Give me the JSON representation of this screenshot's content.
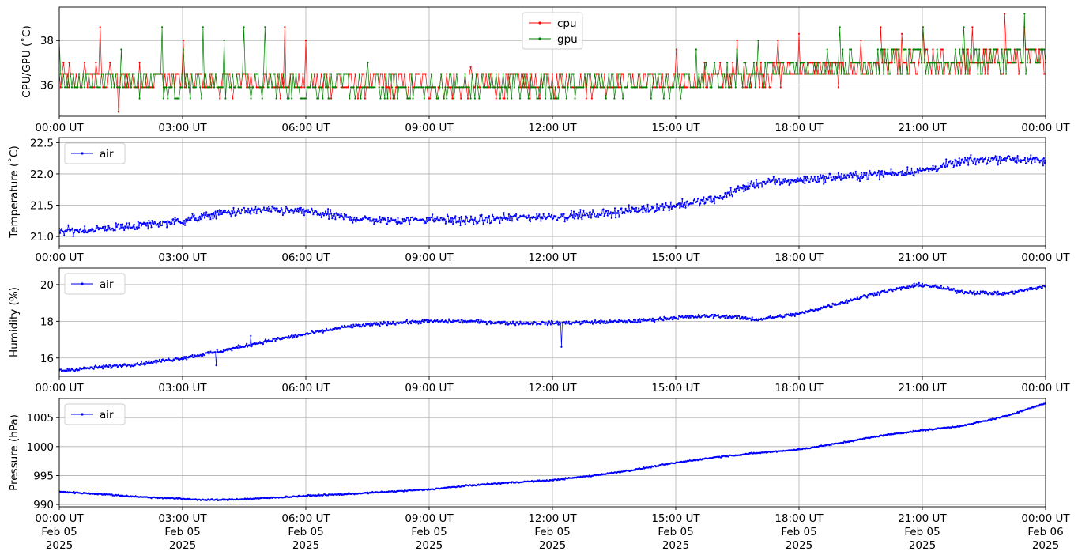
{
  "chart_data": [
    {
      "type": "line",
      "ylabel": "CPU/GPU (˚C)",
      "ylim": [
        34.6,
        39.5
      ],
      "yticks": [
        36,
        38
      ],
      "xlim": [
        0,
        24
      ],
      "xticks": [
        0,
        3,
        6,
        9,
        12,
        15,
        18,
        21,
        24
      ],
      "xtick_labels": [
        "00:00 UT",
        "03:00 UT",
        "06:00 UT",
        "09:00 UT",
        "12:00 UT",
        "15:00 UT",
        "18:00 UT",
        "21:00 UT",
        "00:00 UT"
      ],
      "grid": true,
      "legend_position": "upper center",
      "series": [
        {
          "name": "cpu",
          "color": "#ff0000",
          "generator": {
            "levels": [
              35.4,
              35.9,
              36.5,
              37.0,
              37.6
            ],
            "anchors": [
              [
                0,
                36.4
              ],
              [
                3,
                36.2
              ],
              [
                6,
                36.1
              ],
              [
                9,
                36.0
              ],
              [
                12,
                36.1
              ],
              [
                15,
                36.2
              ],
              [
                16.5,
                36.4
              ],
              [
                18,
                36.6
              ],
              [
                21,
                36.9
              ],
              [
                24,
                37.1
              ]
            ],
            "spread": 0.55,
            "spikes": [
              [
                1.0,
                38.6
              ],
              [
                1.45,
                34.8
              ],
              [
                3.0,
                38.0
              ],
              [
                5.5,
                38.6
              ],
              [
                6.0,
                38.0
              ],
              [
                10.0,
                36.8
              ],
              [
                15.0,
                37.6
              ],
              [
                16.5,
                38.0
              ],
              [
                17.5,
                38.0
              ],
              [
                18.0,
                38.3
              ],
              [
                19.5,
                38.0
              ],
              [
                20.0,
                38.6
              ],
              [
                20.5,
                38.3
              ],
              [
                21.0,
                38.6
              ],
              [
                22.2,
                38.6
              ],
              [
                23.0,
                39.2
              ],
              [
                23.5,
                38.6
              ]
            ],
            "n": 700
          }
        },
        {
          "name": "gpu",
          "color": "#008000",
          "generator": {
            "levels": [
              35.4,
              35.9,
              36.5,
              37.0,
              37.6
            ],
            "anchors": [
              [
                0,
                36.3
              ],
              [
                3,
                36.1
              ],
              [
                6,
                36.0
              ],
              [
                9,
                35.9
              ],
              [
                12,
                36.0
              ],
              [
                15,
                36.1
              ],
              [
                16.5,
                36.5
              ],
              [
                18,
                36.8
              ],
              [
                21,
                37.1
              ],
              [
                24,
                37.2
              ]
            ],
            "spread": 0.55,
            "spikes": [
              [
                0.0,
                38.0
              ],
              [
                1.5,
                37.6
              ],
              [
                2.5,
                38.6
              ],
              [
                3.0,
                37.6
              ],
              [
                3.5,
                38.6
              ],
              [
                4.0,
                38.0
              ],
              [
                4.5,
                38.6
              ],
              [
                5.0,
                38.6
              ],
              [
                7.5,
                37.0
              ],
              [
                15.5,
                37.6
              ],
              [
                16.5,
                37.6
              ],
              [
                17.0,
                38.0
              ],
              [
                19.0,
                38.6
              ],
              [
                21.0,
                38.6
              ],
              [
                22.0,
                38.6
              ],
              [
                23.5,
                39.2
              ]
            ],
            "n": 700
          }
        }
      ]
    },
    {
      "type": "line",
      "ylabel": "Temperature (˚C)",
      "ylim": [
        20.85,
        22.58
      ],
      "yticks": [
        21.0,
        21.5,
        22.0,
        22.5
      ],
      "ytick_labels": [
        "21.0",
        "21.5",
        "22.0",
        "22.5"
      ],
      "xlim": [
        0,
        24
      ],
      "xticks": [
        0,
        3,
        6,
        9,
        12,
        15,
        18,
        21,
        24
      ],
      "xtick_labels": [
        "00:00 UT",
        "03:00 UT",
        "06:00 UT",
        "09:00 UT",
        "12:00 UT",
        "15:00 UT",
        "18:00 UT",
        "21:00 UT",
        "00:00 UT"
      ],
      "grid": true,
      "legend_position": "upper left",
      "series": [
        {
          "name": "air",
          "color": "#0000ff",
          "generator": {
            "anchors": [
              [
                0,
                21.08
              ],
              [
                1,
                21.12
              ],
              [
                2,
                21.18
              ],
              [
                3,
                21.25
              ],
              [
                4,
                21.38
              ],
              [
                5,
                21.42
              ],
              [
                6,
                21.4
              ],
              [
                7,
                21.3
              ],
              [
                8,
                21.25
              ],
              [
                9,
                21.28
              ],
              [
                10,
                21.25
              ],
              [
                11,
                21.3
              ],
              [
                12,
                21.32
              ],
              [
                13,
                21.35
              ],
              [
                14,
                21.42
              ],
              [
                15,
                21.5
              ],
              [
                16,
                21.6
              ],
              [
                16.5,
                21.75
              ],
              [
                17,
                21.85
              ],
              [
                18,
                21.9
              ],
              [
                19,
                21.95
              ],
              [
                20,
                22.0
              ],
              [
                21,
                22.05
              ],
              [
                22,
                22.2
              ],
              [
                23,
                22.25
              ],
              [
                24,
                22.2
              ]
            ],
            "noise": 0.07,
            "n": 1200
          }
        }
      ]
    },
    {
      "type": "line",
      "ylabel": "Humidity (%)",
      "ylim": [
        15.0,
        20.9
      ],
      "yticks": [
        16,
        18,
        20
      ],
      "xlim": [
        0,
        24
      ],
      "xticks": [
        0,
        3,
        6,
        9,
        12,
        15,
        18,
        21,
        24
      ],
      "xtick_labels": [
        "00:00 UT",
        "03:00 UT",
        "06:00 UT",
        "09:00 UT",
        "12:00 UT",
        "15:00 UT",
        "18:00 UT",
        "21:00 UT",
        "00:00 UT"
      ],
      "grid": true,
      "legend_position": "upper left",
      "series": [
        {
          "name": "air",
          "color": "#0000ff",
          "generator": {
            "anchors": [
              [
                0,
                15.3
              ],
              [
                1,
                15.5
              ],
              [
                2,
                15.7
              ],
              [
                3,
                16.0
              ],
              [
                4,
                16.4
              ],
              [
                5,
                16.9
              ],
              [
                6,
                17.3
              ],
              [
                7,
                17.7
              ],
              [
                8,
                17.9
              ],
              [
                9,
                18.0
              ],
              [
                10,
                18.0
              ],
              [
                11,
                17.9
              ],
              [
                12,
                17.9
              ],
              [
                13,
                17.95
              ],
              [
                14,
                18.0
              ],
              [
                15,
                18.2
              ],
              [
                16,
                18.3
              ],
              [
                17,
                18.1
              ],
              [
                18,
                18.4
              ],
              [
                19,
                19.0
              ],
              [
                20,
                19.6
              ],
              [
                21,
                20.0
              ],
              [
                22,
                19.6
              ],
              [
                23,
                19.5
              ],
              [
                24,
                19.9
              ]
            ],
            "noise": 0.1,
            "dips": [
              [
                3.82,
                15.6
              ],
              [
                4.65,
                17.2
              ],
              [
                12.22,
                16.6
              ]
            ],
            "n": 1200
          }
        }
      ]
    },
    {
      "type": "line",
      "ylabel": "Pressure (hPa)",
      "ylim": [
        989.6,
        1008.3
      ],
      "yticks": [
        990,
        995,
        1000,
        1005
      ],
      "xlim": [
        0,
        24
      ],
      "xticks": [
        0,
        3,
        6,
        9,
        12,
        15,
        18,
        21,
        24
      ],
      "xtick_labels": [
        [
          "00:00 UT",
          "Feb 05",
          "2025"
        ],
        [
          "03:00 UT",
          "Feb 05",
          "2025"
        ],
        [
          "06:00 UT",
          "Feb 05",
          "2025"
        ],
        [
          "09:00 UT",
          "Feb 05",
          "2025"
        ],
        [
          "12:00 UT",
          "Feb 05",
          "2025"
        ],
        [
          "15:00 UT",
          "Feb 05",
          "2025"
        ],
        [
          "18:00 UT",
          "Feb 05",
          "2025"
        ],
        [
          "21:00 UT",
          "Feb 05",
          "2025"
        ],
        [
          "00:00 UT",
          "Feb 06",
          "2025"
        ]
      ],
      "grid": true,
      "legend_position": "upper left",
      "series": [
        {
          "name": "air",
          "color": "#0000ff",
          "generator": {
            "anchors": [
              [
                0,
                992.2
              ],
              [
                1,
                991.8
              ],
              [
                2,
                991.3
              ],
              [
                3,
                991.0
              ],
              [
                3.5,
                990.8
              ],
              [
                4,
                990.8
              ],
              [
                5,
                991.1
              ],
              [
                6,
                991.5
              ],
              [
                7,
                991.8
              ],
              [
                8,
                992.2
              ],
              [
                9,
                992.6
              ],
              [
                10,
                993.3
              ],
              [
                11,
                993.8
              ],
              [
                12,
                994.2
              ],
              [
                13,
                995.0
              ],
              [
                14,
                996.0
              ],
              [
                15,
                997.2
              ],
              [
                16,
                998.2
              ],
              [
                17,
                998.9
              ],
              [
                18,
                999.5
              ],
              [
                19,
                1000.6
              ],
              [
                20,
                1001.9
              ],
              [
                21,
                1002.8
              ],
              [
                22,
                1003.6
              ],
              [
                23,
                1005.2
              ],
              [
                24,
                1007.5
              ]
            ],
            "noise": 0.12,
            "n": 1200
          }
        }
      ]
    }
  ]
}
